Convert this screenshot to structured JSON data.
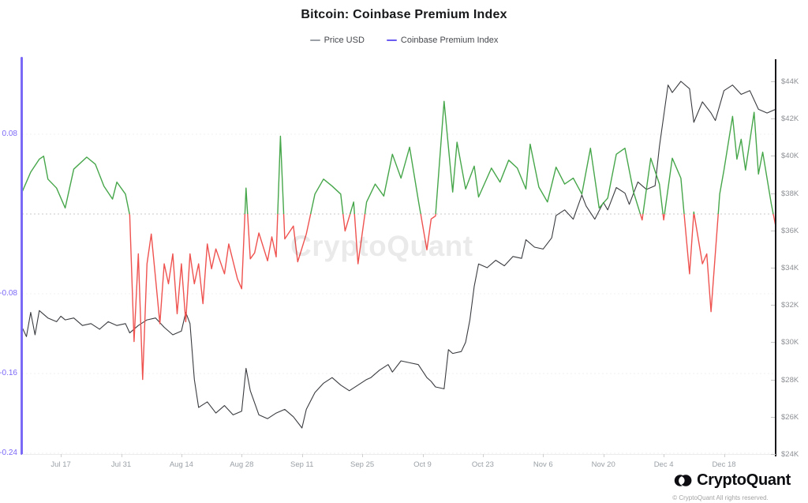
{
  "header": {
    "title": "Bitcoin: Coinbase Premium Index"
  },
  "legend": {
    "items": [
      {
        "label": "Price USD",
        "color": "#9aa0a6"
      },
      {
        "label": "Coinbase Premium Index",
        "color": "#6a5cf0"
      }
    ]
  },
  "watermark": "CryptoQuant",
  "footer": {
    "brand": "CryptoQuant",
    "copyright": "© CryptoQuant All rights reserved.",
    "logo_icon": "cryptoquant-double-crescent",
    "logo_color": "#0d0d12"
  },
  "chart_data": {
    "type": "line",
    "title": "Bitcoin: Coinbase Premium Index",
    "x_unit": "days since chart start (mid-July to late-December span)",
    "x_ticks": [
      {
        "day": 9,
        "label": "Jul 17"
      },
      {
        "day": 23,
        "label": "Jul 31"
      },
      {
        "day": 37,
        "label": "Aug 14"
      },
      {
        "day": 51,
        "label": "Aug 28"
      },
      {
        "day": 65,
        "label": "Sep 11"
      },
      {
        "day": 79,
        "label": "Sep 25"
      },
      {
        "day": 93,
        "label": "Oct 9"
      },
      {
        "day": 107,
        "label": "Oct 23"
      },
      {
        "day": 121,
        "label": "Nov 6"
      },
      {
        "day": 135,
        "label": "Nov 20"
      },
      {
        "day": 149,
        "label": "Dec 4"
      },
      {
        "day": 163,
        "label": "Dec 18"
      }
    ],
    "right_axis": {
      "title": "Price USD",
      "min": 24000,
      "max": 44000,
      "tick_labels": [
        "$44K",
        "$42K",
        "$40K",
        "$38K",
        "$36K",
        "$34K",
        "$32K",
        "$30K",
        "$28K",
        "$26K",
        "$24K"
      ],
      "tick_values": [
        44000,
        42000,
        40000,
        38000,
        36000,
        34000,
        32000,
        30000,
        28000,
        26000,
        24000
      ],
      "line_color": "#17171c",
      "label_color": "#8c8f94"
    },
    "left_axis": {
      "title": "Coinbase Premium Index",
      "ticks": [
        {
          "value": 0.08,
          "label": "0.08"
        },
        {
          "value": -0.08,
          "label": "-0.08"
        },
        {
          "value": -0.16,
          "label": "-0.16"
        },
        {
          "value": -0.24,
          "label": "-0.24"
        }
      ],
      "zero_line": 0,
      "line_color": "#7a68f6",
      "label_color": "#7a68f6"
    },
    "grid": {
      "zero_dashed_color": "#c9c9c9",
      "minor_dashed_color": "#f2f2f2"
    },
    "series": [
      {
        "name": "Price USD",
        "axis": "right",
        "color": "#3a3c40",
        "unit": "K USD",
        "points": [
          [
            0,
            30.8
          ],
          [
            1,
            30.3
          ],
          [
            2,
            31.6
          ],
          [
            3,
            30.4
          ],
          [
            4,
            31.7
          ],
          [
            6,
            31.3
          ],
          [
            8,
            31.1
          ],
          [
            9,
            31.4
          ],
          [
            10,
            31.2
          ],
          [
            12,
            31.3
          ],
          [
            14,
            30.9
          ],
          [
            16,
            31.0
          ],
          [
            18,
            30.7
          ],
          [
            20,
            31.1
          ],
          [
            22,
            30.9
          ],
          [
            24,
            31.0
          ],
          [
            25,
            30.5
          ],
          [
            27,
            30.9
          ],
          [
            29,
            31.2
          ],
          [
            31,
            31.3
          ],
          [
            33,
            30.8
          ],
          [
            35,
            30.4
          ],
          [
            37,
            30.6
          ],
          [
            38,
            31.6
          ],
          [
            39,
            31.0
          ],
          [
            40,
            28.0
          ],
          [
            41,
            26.5
          ],
          [
            43,
            26.8
          ],
          [
            45,
            26.2
          ],
          [
            47,
            26.6
          ],
          [
            49,
            26.1
          ],
          [
            51,
            26.3
          ],
          [
            52,
            28.6
          ],
          [
            53,
            27.4
          ],
          [
            55,
            26.1
          ],
          [
            57,
            25.9
          ],
          [
            59,
            26.2
          ],
          [
            61,
            26.4
          ],
          [
            63,
            26.0
          ],
          [
            65,
            25.4
          ],
          [
            66,
            26.4
          ],
          [
            68,
            27.3
          ],
          [
            70,
            27.8
          ],
          [
            72,
            28.1
          ],
          [
            74,
            27.7
          ],
          [
            76,
            27.4
          ],
          [
            78,
            27.7
          ],
          [
            80,
            28.0
          ],
          [
            81,
            28.1
          ],
          [
            83,
            28.5
          ],
          [
            85,
            28.8
          ],
          [
            86,
            28.4
          ],
          [
            88,
            29.0
          ],
          [
            90,
            28.9
          ],
          [
            92,
            28.8
          ],
          [
            94,
            28.1
          ],
          [
            95,
            27.9
          ],
          [
            96,
            27.6
          ],
          [
            98,
            27.5
          ],
          [
            99,
            29.6
          ],
          [
            100,
            29.4
          ],
          [
            102,
            29.5
          ],
          [
            103,
            30.0
          ],
          [
            104,
            31.2
          ],
          [
            105,
            33.0
          ],
          [
            106,
            34.2
          ],
          [
            108,
            34.0
          ],
          [
            110,
            34.4
          ],
          [
            112,
            34.1
          ],
          [
            114,
            34.6
          ],
          [
            116,
            34.5
          ],
          [
            117,
            35.5
          ],
          [
            119,
            35.1
          ],
          [
            121,
            35.0
          ],
          [
            123,
            35.6
          ],
          [
            124,
            36.8
          ],
          [
            126,
            37.1
          ],
          [
            128,
            36.6
          ],
          [
            130,
            37.9
          ],
          [
            131,
            37.3
          ],
          [
            133,
            36.6
          ],
          [
            135,
            37.5
          ],
          [
            136,
            37.1
          ],
          [
            138,
            38.3
          ],
          [
            140,
            38.0
          ],
          [
            141,
            37.4
          ],
          [
            143,
            38.6
          ],
          [
            145,
            38.2
          ],
          [
            147,
            38.4
          ],
          [
            148,
            40.5
          ],
          [
            150,
            43.8
          ],
          [
            151,
            43.4
          ],
          [
            153,
            44.0
          ],
          [
            155,
            43.6
          ],
          [
            156,
            41.8
          ],
          [
            158,
            42.9
          ],
          [
            160,
            42.3
          ],
          [
            161,
            41.9
          ],
          [
            163,
            43.5
          ],
          [
            165,
            43.8
          ],
          [
            167,
            43.3
          ],
          [
            169,
            43.5
          ],
          [
            171,
            42.5
          ],
          [
            173,
            42.3
          ],
          [
            175,
            42.5
          ]
        ]
      },
      {
        "name": "Coinbase Premium Index",
        "axis": "left",
        "color_positive": "#46a64a",
        "color_negative": "#ef5350",
        "points": [
          [
            0,
            0.022
          ],
          [
            2,
            0.042
          ],
          [
            4,
            0.055
          ],
          [
            5,
            0.058
          ],
          [
            6,
            0.035
          ],
          [
            8,
            0.026
          ],
          [
            10,
            0.006
          ],
          [
            12,
            0.045
          ],
          [
            15,
            0.057
          ],
          [
            17,
            0.05
          ],
          [
            19,
            0.028
          ],
          [
            21,
            0.015
          ],
          [
            22,
            0.032
          ],
          [
            24,
            0.02
          ],
          [
            25,
            -0.001
          ],
          [
            26,
            -0.128
          ],
          [
            27,
            -0.04
          ],
          [
            28,
            -0.166
          ],
          [
            29,
            -0.05
          ],
          [
            30,
            -0.02
          ],
          [
            31,
            -0.065
          ],
          [
            32,
            -0.11
          ],
          [
            33,
            -0.05
          ],
          [
            34,
            -0.07
          ],
          [
            35,
            -0.04
          ],
          [
            36,
            -0.1
          ],
          [
            37,
            -0.05
          ],
          [
            38,
            -0.108
          ],
          [
            39,
            -0.04
          ],
          [
            40,
            -0.07
          ],
          [
            41,
            -0.05
          ],
          [
            42,
            -0.09
          ],
          [
            43,
            -0.03
          ],
          [
            44,
            -0.055
          ],
          [
            45,
            -0.035
          ],
          [
            47,
            -0.06
          ],
          [
            48,
            -0.03
          ],
          [
            50,
            -0.065
          ],
          [
            51,
            -0.075
          ],
          [
            52,
            0.026
          ],
          [
            53,
            -0.045
          ],
          [
            54,
            -0.039
          ],
          [
            55,
            -0.019
          ],
          [
            57,
            -0.047
          ],
          [
            58,
            -0.023
          ],
          [
            59,
            -0.043
          ],
          [
            60,
            0.078
          ],
          [
            61,
            -0.025
          ],
          [
            63,
            -0.012
          ],
          [
            64,
            -0.048
          ],
          [
            66,
            -0.02
          ],
          [
            68,
            0.02
          ],
          [
            70,
            0.035
          ],
          [
            72,
            0.028
          ],
          [
            74,
            0.02
          ],
          [
            75,
            -0.017
          ],
          [
            77,
            0.012
          ],
          [
            78,
            -0.05
          ],
          [
            80,
            0.012
          ],
          [
            82,
            0.03
          ],
          [
            84,
            0.018
          ],
          [
            86,
            0.06
          ],
          [
            88,
            0.036
          ],
          [
            90,
            0.067
          ],
          [
            92,
            0.014
          ],
          [
            94,
            -0.036
          ],
          [
            95,
            -0.005
          ],
          [
            96,
            -0.002
          ],
          [
            98,
            0.113
          ],
          [
            100,
            0.022
          ],
          [
            101,
            0.072
          ],
          [
            103,
            0.025
          ],
          [
            105,
            0.048
          ],
          [
            106,
            0.017
          ],
          [
            109,
            0.046
          ],
          [
            111,
            0.032
          ],
          [
            113,
            0.054
          ],
          [
            115,
            0.046
          ],
          [
            117,
            0.025
          ],
          [
            118,
            0.07
          ],
          [
            120,
            0.027
          ],
          [
            122,
            0.012
          ],
          [
            124,
            0.047
          ],
          [
            126,
            0.03
          ],
          [
            128,
            0.036
          ],
          [
            130,
            0.02
          ],
          [
            132,
            0.066
          ],
          [
            134,
            0.006
          ],
          [
            136,
            0.016
          ],
          [
            138,
            0.06
          ],
          [
            140,
            0.066
          ],
          [
            142,
            0.022
          ],
          [
            144,
            -0.006
          ],
          [
            146,
            0.056
          ],
          [
            148,
            0.03
          ],
          [
            149,
            -0.006
          ],
          [
            151,
            0.056
          ],
          [
            153,
            0.036
          ],
          [
            155,
            -0.06
          ],
          [
            156,
            0.002
          ],
          [
            158,
            -0.05
          ],
          [
            159,
            -0.04
          ],
          [
            160,
            -0.098
          ],
          [
            162,
            0.02
          ],
          [
            163,
            0.044
          ],
          [
            165,
            0.098
          ],
          [
            166,
            0.055
          ],
          [
            167,
            0.075
          ],
          [
            168,
            0.044
          ],
          [
            170,
            0.102
          ],
          [
            171,
            0.04
          ],
          [
            172,
            0.062
          ],
          [
            174,
            0.01
          ],
          [
            175,
            -0.012
          ]
        ]
      }
    ]
  }
}
